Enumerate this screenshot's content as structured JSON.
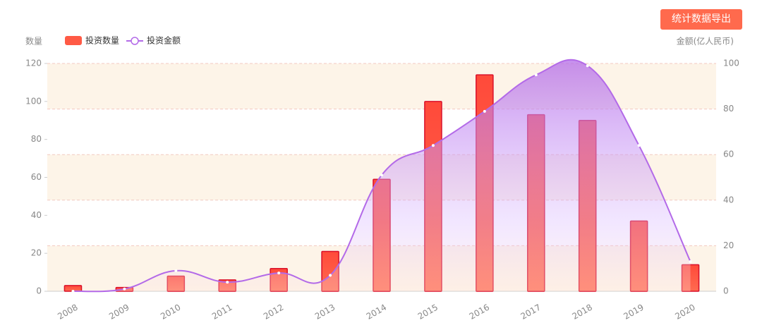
{
  "export_button": "统计数据导出",
  "chart_data": {
    "type": "bar",
    "y_label": "数量",
    "y2_label": "金额(亿人民币)",
    "categories": [
      "2008",
      "2009",
      "2010",
      "2011",
      "2012",
      "2013",
      "2014",
      "2015",
      "2016",
      "2017",
      "2018",
      "2019",
      "2020"
    ],
    "series": [
      {
        "name": "投资数量",
        "type": "bar",
        "color": "#ff5a45",
        "values": [
          3,
          2,
          8,
          6,
          12,
          21,
          59,
          100,
          114,
          93,
          90,
          37,
          14
        ]
      },
      {
        "name": "投资金额",
        "type": "line",
        "axis": "y2",
        "color": "#b36ae8",
        "values": [
          0,
          1,
          9,
          4,
          8,
          7,
          51,
          64,
          79,
          95,
          99,
          64,
          13
        ]
      }
    ],
    "ylim": [
      0,
      120
    ],
    "yticks": [
      0,
      20,
      40,
      60,
      80,
      100,
      120
    ],
    "y2lim": [
      0,
      100
    ],
    "y2ticks": [
      0,
      20,
      40,
      60,
      80,
      100
    ],
    "grid": true,
    "legend": "top-left"
  }
}
